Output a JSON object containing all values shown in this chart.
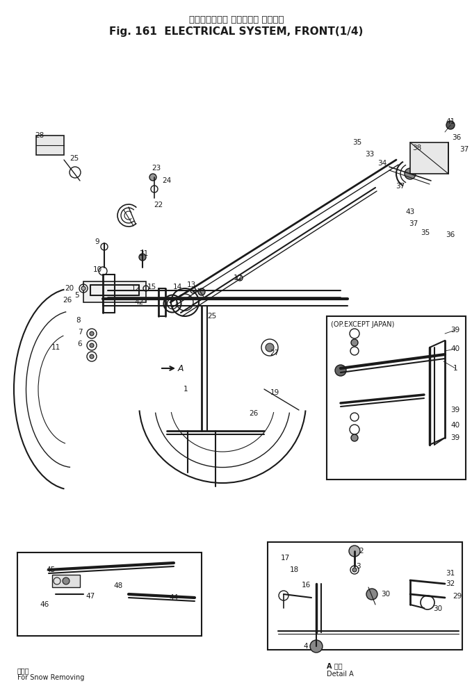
{
  "title_jp": "エレクトリカル システム， フロント",
  "title_en": "Fig. 161  ELECTRICAL SYSTEM, FRONT(1/4)",
  "caption_left_jp": "雪対用",
  "caption_left_en": "For Snow Removing",
  "caption_right_jp": "A 部詳",
  "caption_right_en": "Detail A",
  "bg_color": "#ffffff",
  "line_color": "#1a1a1a",
  "fig_width": 6.79,
  "fig_height": 9.9,
  "dpi": 100
}
